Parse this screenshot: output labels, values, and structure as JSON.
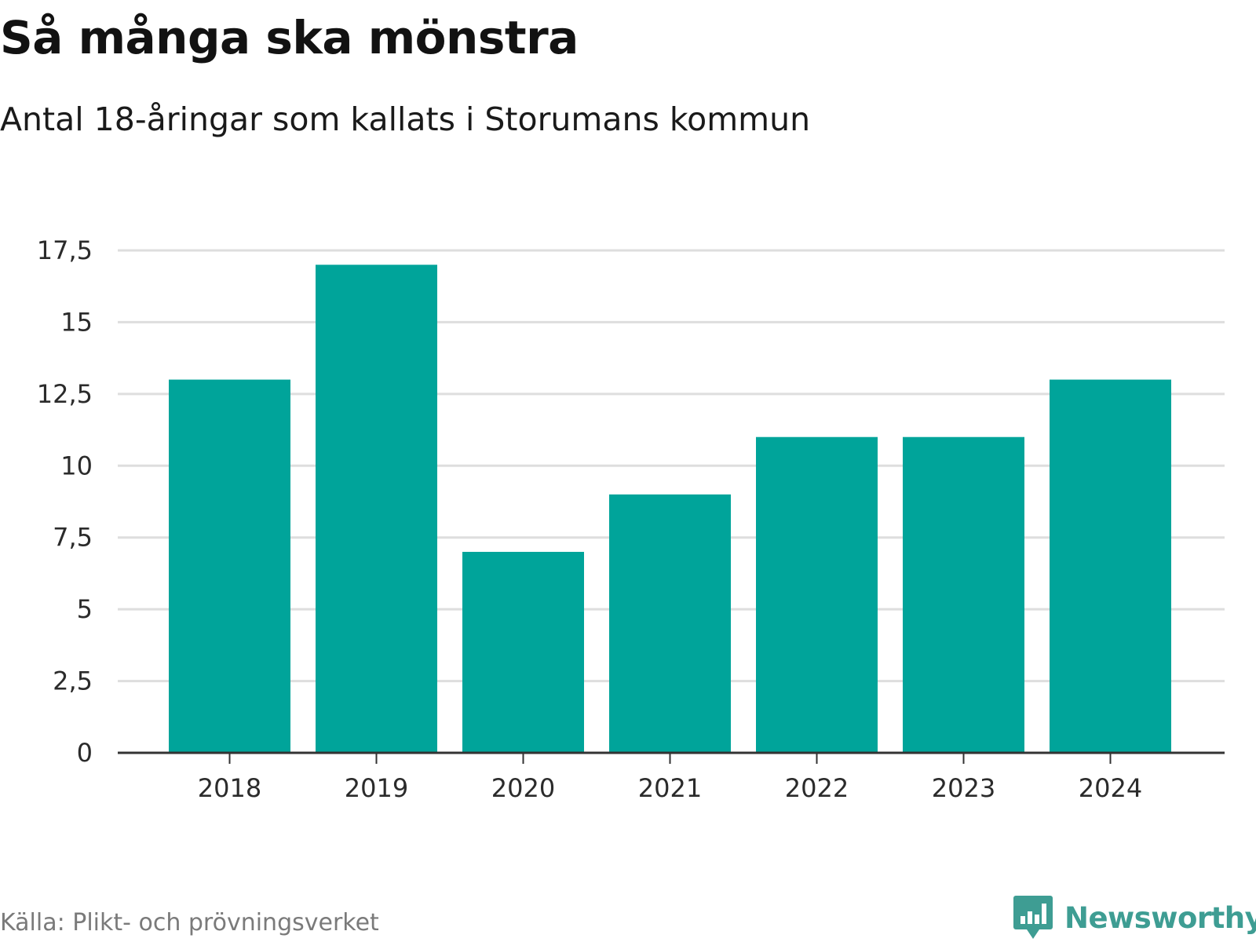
{
  "header": {
    "title": "Så många ska mönstra",
    "subtitle": "Antal 18-åringar som kallats i Storumans kommun"
  },
  "footer": {
    "source": "Källa: Plikt- och prövningsverket",
    "brand": "Newsworthy"
  },
  "colors": {
    "bar": "#00a49a",
    "grid": "#dedede",
    "axis": "#333333",
    "brand": "#3e9d93"
  },
  "chart_data": {
    "type": "bar",
    "title": "Så många ska mönstra",
    "subtitle": "Antal 18-åringar som kallats i Storumans kommun",
    "xlabel": "",
    "ylabel": "",
    "categories": [
      "2018",
      "2019",
      "2020",
      "2021",
      "2022",
      "2023",
      "2024"
    ],
    "values": [
      13,
      17,
      7,
      9,
      11,
      11,
      13
    ],
    "ylim": [
      0,
      17.5
    ],
    "yticks": [
      0,
      2.5,
      5,
      7.5,
      10,
      12.5,
      15,
      17.5
    ],
    "ytick_labels": [
      "0",
      "2,5",
      "5",
      "7,5",
      "10",
      "12,5",
      "15",
      "17,5"
    ],
    "grid": true,
    "legend": "none"
  }
}
